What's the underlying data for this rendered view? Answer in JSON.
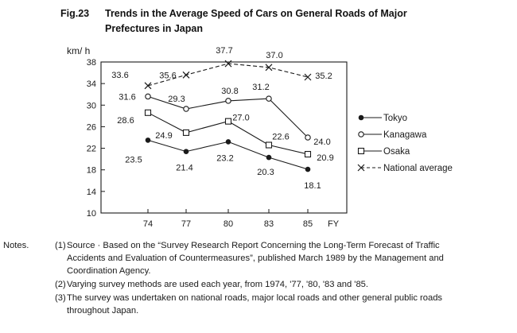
{
  "figure": {
    "number": "Fig.23",
    "title": "Trends in the Average Speed of Cars on General Roads of Major Prefectures in Japan"
  },
  "chart_data": {
    "type": "line",
    "y_unit_label": "km/ h",
    "x_unit_label": "FY",
    "categories": [
      "74",
      "77",
      "80",
      "83",
      "85"
    ],
    "ylim": [
      10,
      38
    ],
    "yticks": [
      10,
      14,
      18,
      22,
      26,
      30,
      34,
      38
    ],
    "grid": false,
    "legend_position": "right",
    "series": [
      {
        "name": "Tokyo",
        "marker": "filled-circle",
        "dashed": false,
        "values": [
          23.5,
          21.4,
          23.2,
          20.3,
          18.1
        ],
        "labels": [
          "23.5",
          "21.4",
          "23.2",
          "20.3",
          "18.1"
        ]
      },
      {
        "name": "Kanagawa",
        "marker": "open-circle",
        "dashed": false,
        "values": [
          31.6,
          29.3,
          30.8,
          31.2,
          24.0
        ],
        "labels": [
          "31.6",
          "29.3",
          "30.8",
          "31.2",
          "24.0"
        ]
      },
      {
        "name": "Osaka",
        "marker": "open-square",
        "dashed": false,
        "values": [
          28.6,
          24.9,
          27.0,
          22.6,
          20.9
        ],
        "labels": [
          "28.6",
          "24.9",
          "27.0",
          "22.6",
          "20.9"
        ]
      },
      {
        "name": "National average",
        "marker": "x",
        "dashed": true,
        "values": [
          33.6,
          35.6,
          37.7,
          37.0,
          35.2
        ],
        "labels": [
          "33.6",
          "35.6",
          "37.7",
          "37.0",
          "35.2"
        ]
      }
    ]
  },
  "notes": {
    "lead": "Notes.",
    "items": [
      {
        "marker": "(1)",
        "lines": [
          "Source · Based on the “Survey Research Report Concerning the Long-Term Forecast of Traffic",
          "Accidents and Evaluation of Countermeasures”, published March 1989  by the Management and",
          "Coordination Agency."
        ]
      },
      {
        "marker": "(2)",
        "lines": [
          "Varying survey methods are used each year, from 1974, '77, '80, '83 and '85."
        ]
      },
      {
        "marker": "(3)",
        "lines": [
          "The survey was undertaken on national roads, major local roads and other general public roads",
          "throughout Japan."
        ]
      }
    ]
  }
}
